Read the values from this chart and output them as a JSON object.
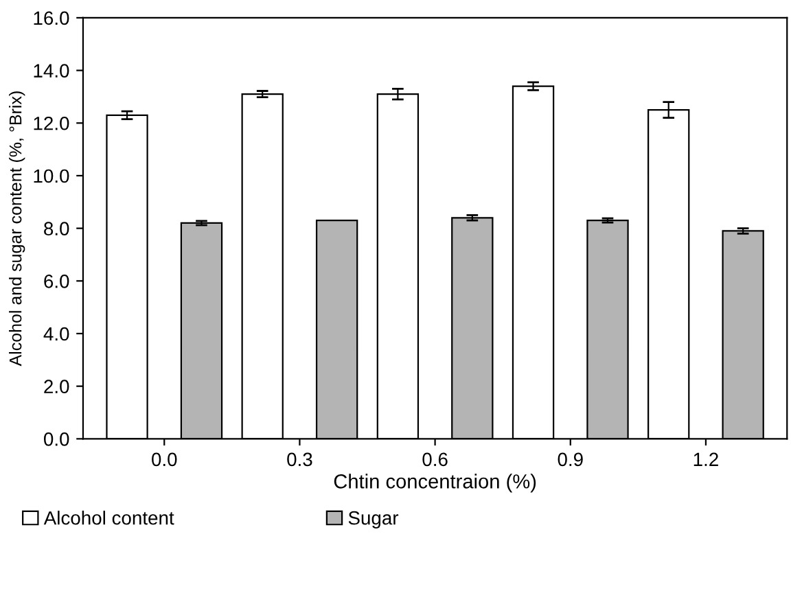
{
  "chart_data": {
    "type": "bar",
    "xlabel": "Chtin concentraion (%)",
    "ylabel": "Alcohol and sugar content (%, °Brix)",
    "categories": [
      "0.0",
      "0.3",
      "0.6",
      "0.9",
      "1.2"
    ],
    "series": [
      {
        "name": "Alcohol content",
        "color": "#ffffff",
        "values": [
          12.3,
          13.1,
          13.1,
          13.4,
          12.5
        ],
        "errors": [
          0.15,
          0.12,
          0.2,
          0.15,
          0.3
        ]
      },
      {
        "name": "Sugar",
        "color": "#b4b4b4",
        "values": [
          8.2,
          8.3,
          8.4,
          8.3,
          7.9
        ],
        "errors": [
          0.08,
          null,
          0.1,
          0.08,
          0.1
        ]
      }
    ],
    "ylim": [
      0,
      16
    ],
    "yticks": [
      {
        "value": 0,
        "label": "0.0"
      },
      {
        "value": 2,
        "label": "2.0"
      },
      {
        "value": 4,
        "label": "4.0"
      },
      {
        "value": 6,
        "label": "6.0"
      },
      {
        "value": 8,
        "label": "8.0"
      },
      {
        "value": 10,
        "label": "10.0"
      },
      {
        "value": 12,
        "label": "12.0"
      },
      {
        "value": 14,
        "label": "14.0"
      },
      {
        "value": 16,
        "label": "16.0"
      }
    ],
    "grid": false,
    "legend": "bottom left"
  }
}
